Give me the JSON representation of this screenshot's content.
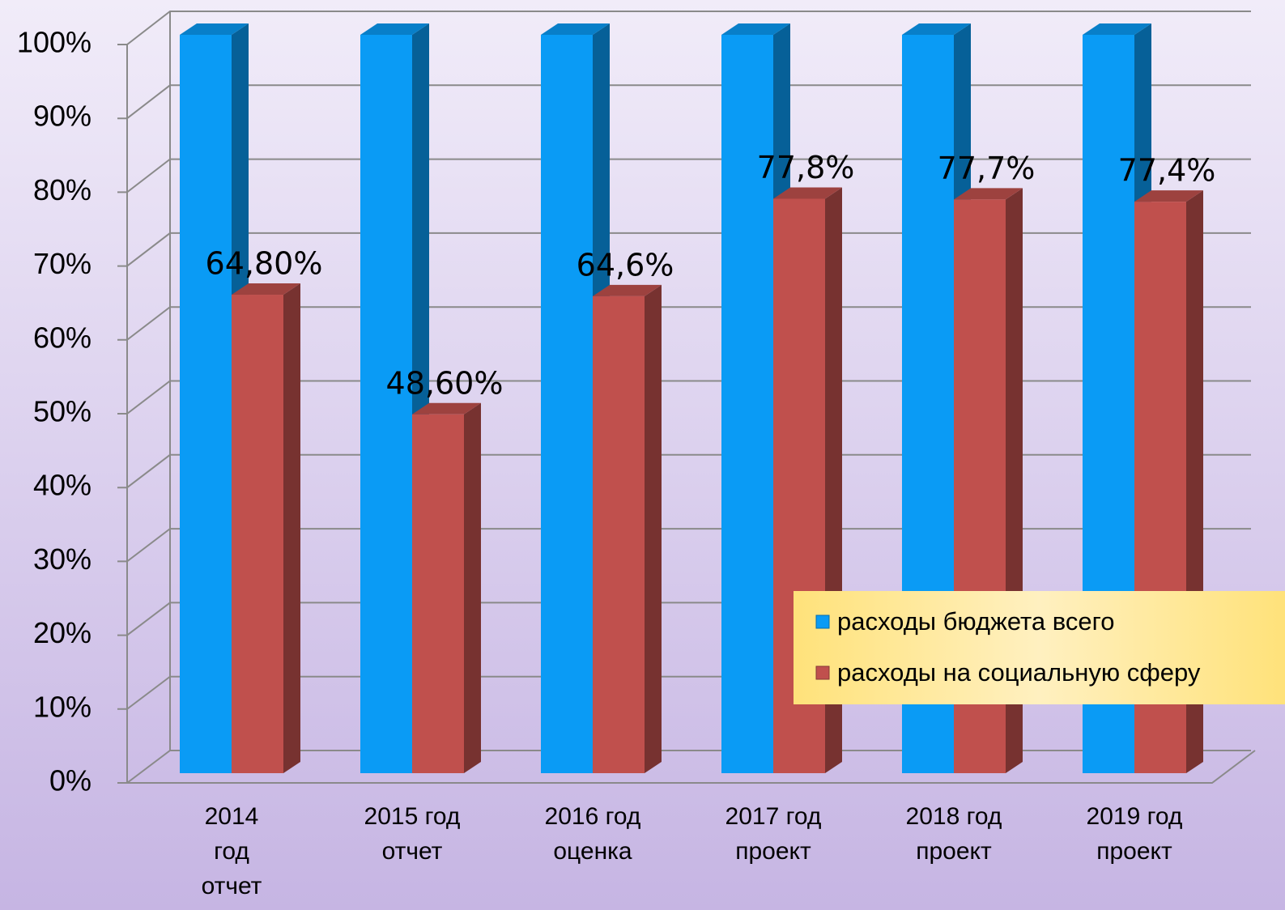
{
  "chart_data": {
    "type": "bar3d",
    "categories": [
      "2014\nгод\nотчет",
      "2015 год\nотчет",
      "2016 год\nоценка",
      "2017 год\nпроект",
      "2018 год\nпроект",
      "2019 год\nпроект"
    ],
    "series": [
      {
        "name": "расходы бюджета всего",
        "color": "#0a9bf5",
        "values": [
          100,
          100,
          100,
          100,
          100,
          100
        ]
      },
      {
        "name": "расходы на социальную сферу",
        "color": "#c0504d",
        "values": [
          64.8,
          48.6,
          64.6,
          77.8,
          77.7,
          77.4
        ],
        "value_labels": [
          "64,80%",
          "48,60%",
          "64,6%",
          "77,8%",
          "77,7%",
          "77,4%"
        ]
      }
    ],
    "ylim": [
      0,
      100
    ],
    "yticks": [
      {
        "value": 0,
        "label": "0%"
      },
      {
        "value": 10,
        "label": "10%"
      },
      {
        "value": 20,
        "label": "20%"
      },
      {
        "value": 30,
        "label": "30%"
      },
      {
        "value": 40,
        "label": "40%"
      },
      {
        "value": 50,
        "label": "50%"
      },
      {
        "value": 60,
        "label": "60%"
      },
      {
        "value": 70,
        "label": "70%"
      },
      {
        "value": 80,
        "label": "80%"
      },
      {
        "value": 90,
        "label": "90%"
      },
      {
        "value": 100,
        "label": "100%"
      }
    ],
    "grid": true,
    "legend": "lower right"
  }
}
